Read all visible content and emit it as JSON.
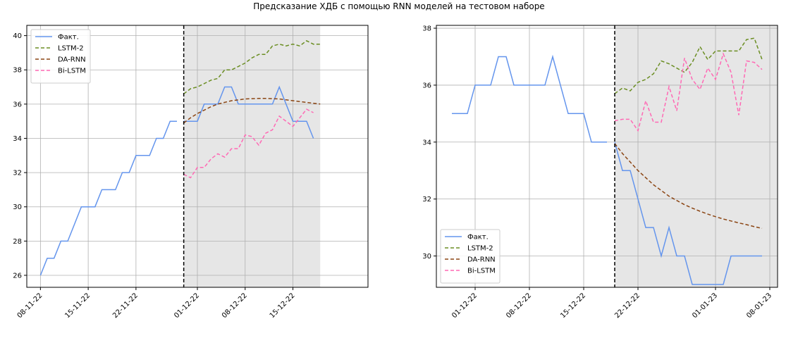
{
  "figure": {
    "title": "Предсказание ХДБ с помощью RNN моделей на тестовом наборе"
  },
  "chart_data": [
    {
      "type": "line",
      "x_type": "date",
      "xlim": [
        "2022-11-06",
        "2022-12-26"
      ],
      "ylim": [
        25.3,
        40.6
      ],
      "x_ticks": [
        {
          "date": "2022-11-08",
          "label": "08-11-22"
        },
        {
          "date": "2022-11-15",
          "label": "15-11-22"
        },
        {
          "date": "2022-11-22",
          "label": "22-11-22"
        },
        {
          "date": "2022-12-01",
          "label": "01-12-22"
        },
        {
          "date": "2022-12-08",
          "label": "08-12-22"
        },
        {
          "date": "2022-12-15",
          "label": "15-12-22"
        }
      ],
      "y_ticks": [
        26,
        28,
        30,
        32,
        34,
        36,
        38,
        40
      ],
      "grid": true,
      "legend_position": "upper-left",
      "split_date": "2022-11-29",
      "shaded_from": "2022-11-29",
      "shaded_to": "2022-12-19",
      "series": [
        {
          "name": "Факт.",
          "color": "#6495ed",
          "dash": "solid",
          "x": [
            "2022-11-08",
            "2022-11-09",
            "2022-11-10",
            "2022-11-11",
            "2022-11-12",
            "2022-11-13",
            "2022-11-14",
            "2022-11-15",
            "2022-11-16",
            "2022-11-17",
            "2022-11-18",
            "2022-11-19",
            "2022-11-20",
            "2022-11-21",
            "2022-11-22",
            "2022-11-23",
            "2022-11-24",
            "2022-11-25",
            "2022-11-26",
            "2022-11-27",
            "2022-11-28"
          ],
          "y": [
            26,
            27,
            27,
            28,
            28,
            29,
            30,
            30,
            30,
            31,
            31,
            31,
            32,
            32,
            33,
            33,
            33,
            34,
            34,
            35,
            35
          ]
        },
        {
          "name": "Факт.",
          "color": "#6495ed",
          "dash": "solid",
          "x": [
            "2022-11-29",
            "2022-11-30",
            "2022-12-01",
            "2022-12-02",
            "2022-12-03",
            "2022-12-04",
            "2022-12-05",
            "2022-12-06",
            "2022-12-07",
            "2022-12-08",
            "2022-12-09",
            "2022-12-10",
            "2022-12-11",
            "2022-12-12",
            "2022-12-13",
            "2022-12-14",
            "2022-12-15",
            "2022-12-16",
            "2022-12-17",
            "2022-12-18"
          ],
          "y": [
            35,
            35,
            35,
            36,
            36,
            36,
            37,
            37,
            36,
            36,
            36,
            36,
            36,
            36,
            37,
            36,
            35,
            35,
            35,
            34
          ]
        },
        {
          "name": "LSTM-2",
          "color": "#6b8e23",
          "dash": "5,3",
          "x": [
            "2022-11-29",
            "2022-11-30",
            "2022-12-01",
            "2022-12-02",
            "2022-12-03",
            "2022-12-04",
            "2022-12-05",
            "2022-12-06",
            "2022-12-07",
            "2022-12-08",
            "2022-12-09",
            "2022-12-10",
            "2022-12-11",
            "2022-12-12",
            "2022-12-13",
            "2022-12-14",
            "2022-12-15",
            "2022-12-16",
            "2022-12-17",
            "2022-12-18",
            "2022-12-19"
          ],
          "y": [
            36.6,
            36.9,
            37.0,
            37.2,
            37.4,
            37.5,
            38.0,
            38.0,
            38.2,
            38.4,
            38.7,
            38.9,
            38.9,
            39.4,
            39.5,
            39.4,
            39.5,
            39.4,
            39.7,
            39.5,
            39.5
          ]
        },
        {
          "name": "DA-RNN",
          "color": "#8b4513",
          "dash": "5,3",
          "x": [
            "2022-11-29",
            "2022-11-30",
            "2022-12-01",
            "2022-12-02",
            "2022-12-03",
            "2022-12-04",
            "2022-12-05",
            "2022-12-06",
            "2022-12-07",
            "2022-12-08",
            "2022-12-09",
            "2022-12-10",
            "2022-12-11",
            "2022-12-12",
            "2022-12-13",
            "2022-12-14",
            "2022-12-15",
            "2022-12-16",
            "2022-12-17",
            "2022-12-18",
            "2022-12-19"
          ],
          "y": [
            34.9,
            35.2,
            35.45,
            35.65,
            35.85,
            36.0,
            36.1,
            36.2,
            36.25,
            36.3,
            36.32,
            36.33,
            36.33,
            36.32,
            36.3,
            36.25,
            36.2,
            36.15,
            36.1,
            36.05,
            36.0
          ]
        },
        {
          "name": "Bi-LSTM",
          "color": "#ff69b4",
          "dash": "5,3",
          "x": [
            "2022-11-29",
            "2022-11-30",
            "2022-12-01",
            "2022-12-02",
            "2022-12-03",
            "2022-12-04",
            "2022-12-05",
            "2022-12-06",
            "2022-12-07",
            "2022-12-08",
            "2022-12-09",
            "2022-12-10",
            "2022-12-11",
            "2022-12-12",
            "2022-12-13",
            "2022-12-14",
            "2022-12-15",
            "2022-12-16",
            "2022-12-17",
            "2022-12-18"
          ],
          "y": [
            31.9,
            31.7,
            32.3,
            32.3,
            32.8,
            33.1,
            32.9,
            33.4,
            33.4,
            34.2,
            34.1,
            33.6,
            34.3,
            34.5,
            35.3,
            35.0,
            34.7,
            35.2,
            35.7,
            35.5
          ]
        }
      ]
    },
    {
      "type": "line",
      "x_type": "date",
      "xlim": [
        "2022-11-26",
        "2023-01-09"
      ],
      "ylim": [
        28.9,
        38.1
      ],
      "x_ticks": [
        {
          "date": "2022-12-01",
          "label": "01-12-22"
        },
        {
          "date": "2022-12-08",
          "label": "08-12-22"
        },
        {
          "date": "2022-12-15",
          "label": "15-12-22"
        },
        {
          "date": "2022-12-22",
          "label": "22-12-22"
        },
        {
          "date": "2023-01-01",
          "label": "01-01-23"
        },
        {
          "date": "2023-01-08",
          "label": "08-01-23"
        }
      ],
      "y_ticks": [
        30,
        32,
        34,
        36,
        38
      ],
      "grid": true,
      "legend_position": "lower-left",
      "split_date": "2022-12-19",
      "shaded_from": "2022-12-19",
      "shaded_to": "2023-01-09",
      "series": [
        {
          "name": "Факт.",
          "color": "#6495ed",
          "dash": "solid",
          "x": [
            "2022-11-28",
            "2022-11-29",
            "2022-11-30",
            "2022-12-01",
            "2022-12-02",
            "2022-12-03",
            "2022-12-04",
            "2022-12-05",
            "2022-12-06",
            "2022-12-07",
            "2022-12-08",
            "2022-12-09",
            "2022-12-10",
            "2022-12-11",
            "2022-12-12",
            "2022-12-13",
            "2022-12-14",
            "2022-12-15",
            "2022-12-16",
            "2022-12-17",
            "2022-12-18"
          ],
          "y": [
            35,
            35,
            35,
            36,
            36,
            36,
            37,
            37,
            36,
            36,
            36,
            36,
            36,
            37,
            36,
            35,
            35,
            35,
            34,
            34,
            34
          ]
        },
        {
          "name": "Факт.",
          "color": "#6495ed",
          "dash": "solid",
          "x": [
            "2022-12-19",
            "2022-12-20",
            "2022-12-21",
            "2022-12-22",
            "2022-12-23",
            "2022-12-24",
            "2022-12-25",
            "2022-12-26",
            "2022-12-27",
            "2022-12-28",
            "2022-12-29",
            "2022-12-30",
            "2022-12-31",
            "2023-01-01",
            "2023-01-02",
            "2023-01-03",
            "2023-01-04",
            "2023-01-05",
            "2023-01-06",
            "2023-01-07"
          ],
          "y": [
            34,
            33,
            33,
            32,
            31,
            31,
            30,
            31,
            30,
            30,
            29,
            29,
            29,
            29,
            29,
            30,
            30,
            30,
            30,
            30
          ]
        },
        {
          "name": "LSTM-2",
          "color": "#6b8e23",
          "dash": "5,3",
          "x": [
            "2022-12-19",
            "2022-12-20",
            "2022-12-21",
            "2022-12-22",
            "2022-12-23",
            "2022-12-24",
            "2022-12-25",
            "2022-12-26",
            "2022-12-27",
            "2022-12-28",
            "2022-12-29",
            "2022-12-30",
            "2022-12-31",
            "2023-01-01",
            "2023-01-02",
            "2023-01-03",
            "2023-01-04",
            "2023-01-05",
            "2023-01-06",
            "2023-01-07"
          ],
          "y": [
            35.7,
            35.9,
            35.8,
            36.1,
            36.2,
            36.4,
            36.85,
            36.75,
            36.6,
            36.45,
            36.8,
            37.35,
            36.9,
            37.2,
            37.2,
            37.2,
            37.2,
            37.6,
            37.65,
            36.9
          ]
        },
        {
          "name": "DA-RNN",
          "color": "#8b4513",
          "dash": "5,3",
          "x": [
            "2022-12-19",
            "2022-12-20",
            "2022-12-21",
            "2022-12-22",
            "2022-12-23",
            "2022-12-24",
            "2022-12-25",
            "2022-12-26",
            "2022-12-27",
            "2022-12-28",
            "2022-12-29",
            "2022-12-30",
            "2022-12-31",
            "2023-01-01",
            "2023-01-02",
            "2023-01-03",
            "2023-01-04",
            "2023-01-05",
            "2023-01-06",
            "2023-01-07"
          ],
          "y": [
            33.95,
            33.6,
            33.3,
            33.0,
            32.75,
            32.5,
            32.3,
            32.1,
            31.95,
            31.8,
            31.68,
            31.57,
            31.47,
            31.38,
            31.3,
            31.23,
            31.16,
            31.1,
            31.03,
            30.97
          ]
        },
        {
          "name": "Bi-LSTM",
          "color": "#ff69b4",
          "dash": "5,3",
          "x": [
            "2022-12-19",
            "2022-12-20",
            "2022-12-21",
            "2022-12-22",
            "2022-12-23",
            "2022-12-24",
            "2022-12-25",
            "2022-12-26",
            "2022-12-27",
            "2022-12-28",
            "2022-12-29",
            "2022-12-30",
            "2022-12-31",
            "2023-01-01",
            "2023-01-02",
            "2023-01-03",
            "2023-01-04",
            "2023-01-05",
            "2023-01-06",
            "2023-01-07"
          ],
          "y": [
            34.75,
            34.8,
            34.8,
            34.4,
            35.45,
            34.7,
            34.7,
            35.95,
            35.1,
            36.95,
            36.2,
            35.85,
            36.6,
            36.2,
            37.1,
            36.45,
            34.95,
            36.85,
            36.8,
            36.55
          ]
        }
      ]
    }
  ]
}
